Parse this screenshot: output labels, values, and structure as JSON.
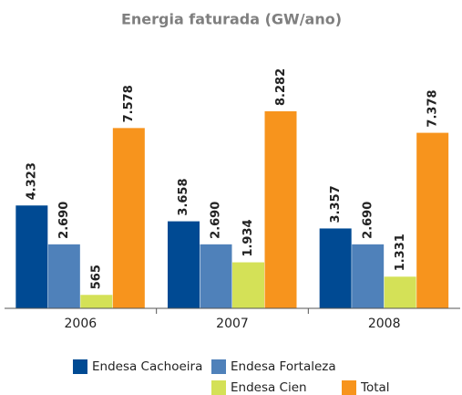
{
  "chart_data": {
    "type": "bar",
    "title": "Energia faturada (GW/ano)",
    "categories": [
      "2006",
      "2007",
      "2008"
    ],
    "series": [
      {
        "name": "Endesa Cachoeira",
        "color": "#004a93",
        "values": [
          4323,
          3658,
          3357
        ],
        "value_labels": [
          "4.323",
          "3.658",
          "3.357"
        ]
      },
      {
        "name": "Endesa Fortaleza",
        "color": "#4f81ba",
        "values": [
          2690,
          2690,
          2690
        ],
        "value_labels": [
          "2.690",
          "2.690",
          "2.690"
        ]
      },
      {
        "name": "Endesa Cien",
        "color": "#d4e157",
        "values": [
          565,
          1934,
          1331
        ],
        "value_labels": [
          "565",
          "1.934",
          "1.331"
        ]
      },
      {
        "name": "Total",
        "color": "#f7941d",
        "values": [
          7578,
          8282,
          7378
        ],
        "value_labels": [
          "7.578",
          "8.282",
          "7.378"
        ]
      }
    ]
  }
}
